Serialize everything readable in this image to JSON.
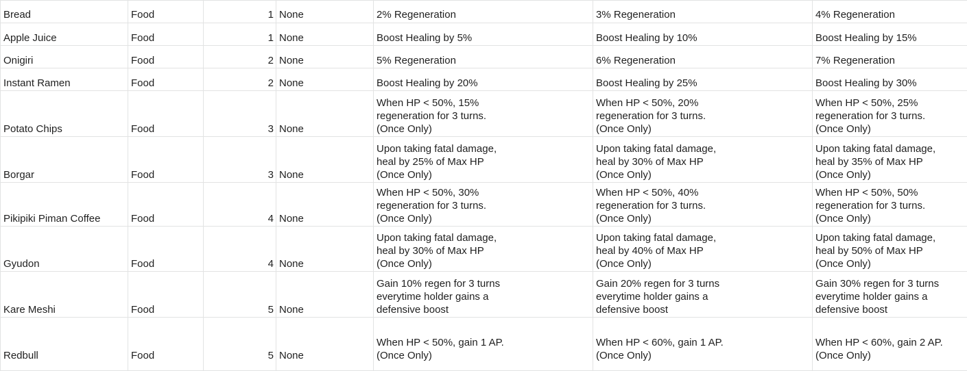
{
  "sheet": {
    "rows": [
      {
        "name": "Bread",
        "type": "Food",
        "tier": "1",
        "req": "None",
        "lv1": "2% Regeneration",
        "lv2": "3% Regeneration",
        "lv3": "4% Regeneration"
      },
      {
        "name": "Apple Juice",
        "type": "Food",
        "tier": "1",
        "req": "None",
        "lv1": "Boost Healing by 5%",
        "lv2": "Boost Healing by 10%",
        "lv3": "Boost Healing by 15%"
      },
      {
        "name": "Onigiri",
        "type": "Food",
        "tier": "2",
        "req": "None",
        "lv1": "5% Regeneration",
        "lv2": "6% Regeneration",
        "lv3": "7% Regeneration"
      },
      {
        "name": "Instant Ramen",
        "type": "Food",
        "tier": "2",
        "req": "None",
        "lv1": "Boost Healing by 20%",
        "lv2": "Boost Healing by 25%",
        "lv3": "Boost Healing by 30%"
      },
      {
        "name": "Potato Chips",
        "type": "Food",
        "tier": "3",
        "req": "None",
        "lv1": "When HP < 50%, 15%\nregeneration for 3 turns.\n(Once Only)",
        "lv2": "When HP < 50%, 20%\nregeneration for 3 turns.\n(Once Only)",
        "lv3": "When HP < 50%, 25%\nregeneration for 3 turns.\n(Once Only)"
      },
      {
        "name": "Borgar",
        "type": "Food",
        "tier": "3",
        "req": "None",
        "lv1": "Upon taking fatal damage,\nheal by 25% of Max HP\n(Once Only)",
        "lv2": "Upon taking fatal damage,\nheal by 30% of Max HP\n(Once Only)",
        "lv3": "Upon taking fatal damage,\nheal by 35% of Max HP\n(Once Only)"
      },
      {
        "name": "Pikipiki Piman Coffee",
        "type": "Food",
        "tier": "4",
        "req": "None",
        "lv1": "When HP < 50%, 30%\nregeneration for 3 turns.\n(Once Only)",
        "lv2": "When HP < 50%, 40%\nregeneration for 3 turns.\n(Once Only)",
        "lv3": "When HP < 50%, 50%\nregeneration for 3 turns.\n(Once Only)"
      },
      {
        "name": "Gyudon",
        "type": "Food",
        "tier": "4",
        "req": "None",
        "lv1": "Upon taking fatal damage,\nheal by 30% of Max HP\n(Once Only)",
        "lv2": "Upon taking fatal damage,\nheal by 40% of Max HP\n(Once Only)",
        "lv3": "Upon taking fatal damage,\nheal by 50% of Max HP\n(Once Only)"
      },
      {
        "name": "Kare Meshi",
        "type": "Food",
        "tier": "5",
        "req": "None",
        "lv1": "Gain 10% regen for 3 turns\neverytime holder gains a\ndefensive boost",
        "lv2": "Gain 20% regen for 3 turns\neverytime holder gains a\ndefensive boost",
        "lv3": "Gain 30% regen for 3 turns\neverytime holder gains a\ndefensive boost"
      },
      {
        "name": "Redbull",
        "type": "Food",
        "tier": "5",
        "req": "None",
        "lv1": "When HP < 50%, gain 1 AP.\n(Once Only)",
        "lv2": "When HP < 60%, gain 1 AP.\n(Once Only)",
        "lv3": "When HP < 60%, gain 2 AP.\n(Once Only)"
      }
    ]
  }
}
